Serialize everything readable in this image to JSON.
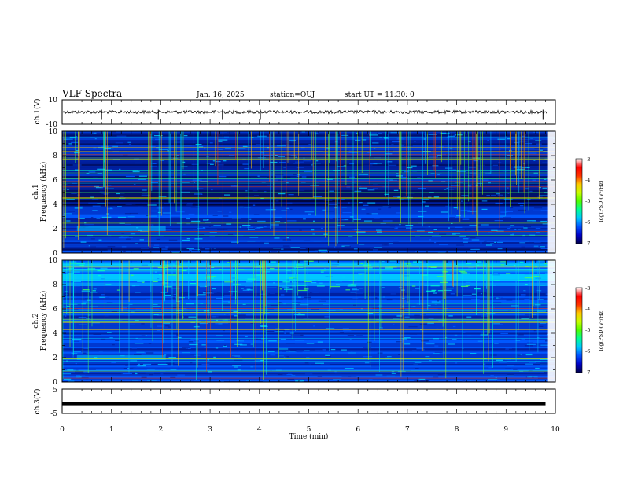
{
  "header": {
    "title": "VLF Spectra",
    "date": "Jan. 16, 2025",
    "station": "station=OUJ",
    "start_ut": "start UT =  11:30: 0"
  },
  "chart_data": {
    "type": "heatmap",
    "time_axis": {
      "label": "Time (min)",
      "range": [
        0,
        10
      ],
      "ticks": [
        "0",
        "1",
        "2",
        "3",
        "4",
        "5",
        "6",
        "7",
        "8",
        "9",
        "10"
      ]
    },
    "panels": [
      {
        "id": "ch1-waveform",
        "type": "line",
        "ylabel": "ch.1(V)",
        "ylim": [
          -10,
          10
        ],
        "ytick_labels": [
          "10",
          "-10"
        ],
        "baseline_value": 0,
        "spike_times_min": [
          0.8,
          1.95,
          3.25,
          4.02,
          9.75
        ]
      },
      {
        "id": "ch1-spectrogram",
        "type": "heatmap",
        "ylabel_top": "ch.1",
        "ylabel": "Frequency (kHz)",
        "ylim": [
          0,
          10
        ],
        "ytick_labels": [
          "0",
          "2",
          "4",
          "6",
          "8",
          "10"
        ]
      },
      {
        "id": "ch2-spectrogram",
        "type": "heatmap",
        "ylabel_top": "ch.2",
        "ylabel": "Frequency (kHz)",
        "ylim": [
          0,
          10
        ],
        "ytick_labels": [
          "0",
          "2",
          "4",
          "6",
          "8",
          "10"
        ]
      },
      {
        "id": "ch3-waveform",
        "type": "line",
        "ylabel": "ch.3(V)",
        "ylim": [
          -5,
          5
        ],
        "ytick_labels": [
          "5",
          "-5"
        ],
        "baseline_value": -1
      }
    ],
    "colorbar": {
      "label": "log(PSD)(V²/Hz)",
      "range": [
        -7,
        -3
      ],
      "tick_labels": [
        "-3",
        "-4",
        "-5",
        "-6",
        "-7"
      ],
      "colors": [
        "#00004a",
        "#0000c8",
        "#0050ff",
        "#00c8ff",
        "#00ff96",
        "#50ff00",
        "#c8ff00",
        "#ffc800",
        "#ff3200",
        "#ff0000",
        "#ffffff"
      ]
    }
  }
}
